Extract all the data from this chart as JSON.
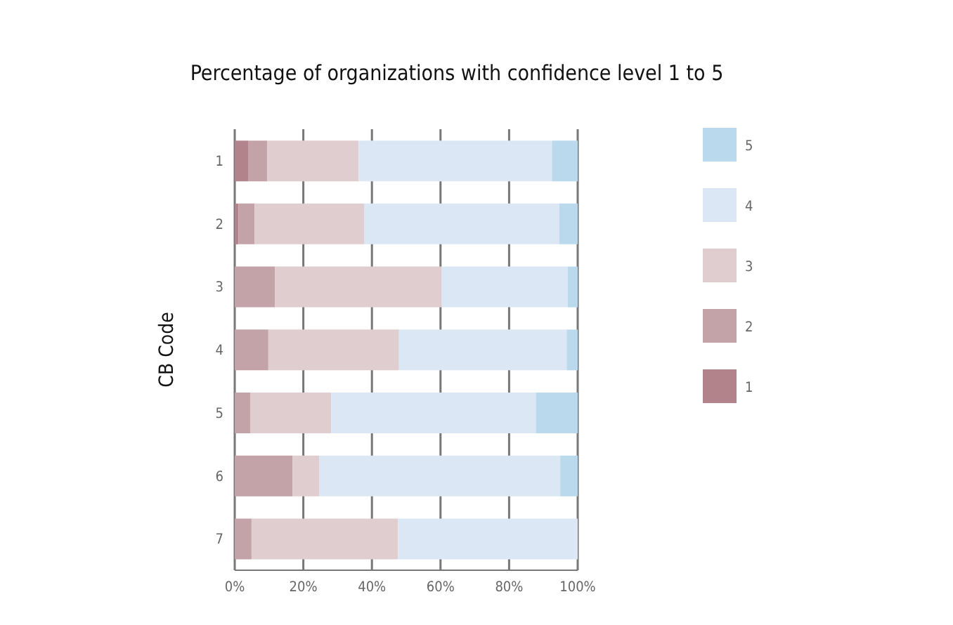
{
  "chart_data": {
    "type": "bar",
    "orientation": "horizontal",
    "stacked": true,
    "title": "Percentage of organizations with confidence level 1 to 5",
    "ylabel": "CB Code",
    "categories": [
      "1",
      "2",
      "3",
      "4",
      "5",
      "6",
      "7"
    ],
    "series": [
      {
        "name": "1",
        "color": "#b3838c",
        "values": [
          3.9,
          1.1,
          0,
          0,
          0,
          0,
          0
        ]
      },
      {
        "name": "2",
        "color": "#c4a3a8",
        "values": [
          5.6,
          4.7,
          11.7,
          9.8,
          4.5,
          16.9,
          4.9
        ]
      },
      {
        "name": "3",
        "color": "#dfcdd0",
        "values": [
          26.6,
          31.9,
          48.6,
          38.1,
          23.6,
          7.7,
          42.7
        ]
      },
      {
        "name": "4",
        "color": "#dce7f5",
        "values": [
          56.4,
          56.9,
          36.8,
          48.9,
          59.7,
          70.3,
          52.4
        ]
      },
      {
        "name": "5",
        "color": "#bad9ec",
        "values": [
          7.5,
          5.4,
          2.9,
          3.2,
          12.2,
          5.1,
          0
        ]
      }
    ],
    "xlim": [
      0,
      100
    ],
    "xticks": [
      {
        "value": 0,
        "label": "0%"
      },
      {
        "value": 20,
        "label": "20%"
      },
      {
        "value": 40,
        "label": "40%"
      },
      {
        "value": 60,
        "label": "60%"
      },
      {
        "value": 80,
        "label": "80%"
      },
      {
        "value": 100,
        "label": "100%"
      }
    ],
    "grid": "x",
    "legend": "right"
  }
}
